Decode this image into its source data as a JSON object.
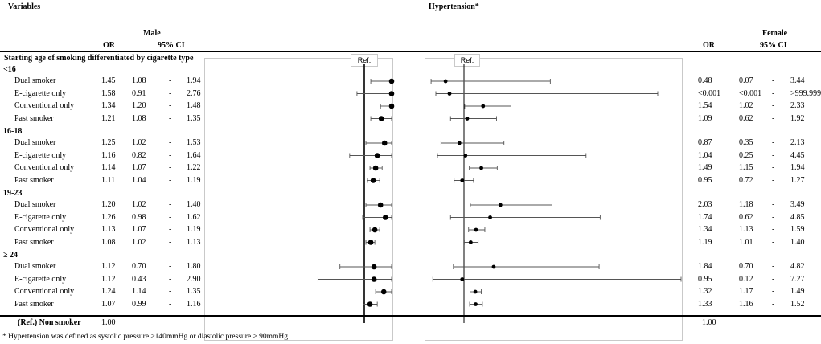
{
  "header": {
    "variables": "Variables",
    "hypertension": "Hypertension*",
    "male": "Male",
    "female": "Female",
    "or": "OR",
    "ci": "95% CI",
    "section_title": "Starting age of smoking differentiated by cigarette type"
  },
  "ref_label": "Ref.",
  "groups": [
    "<16",
    "16-18",
    "19-23",
    "≥ 24"
  ],
  "dash": "-",
  "footer": {
    "ref_row_label": "(Ref.) Non smoker",
    "ref_male_or": "1.00",
    "ref_female_or": "1.00",
    "note": "* Hypertension was defined as systolic pressure ≥140mmHg or diastolic pressure ≥ 90mmHg"
  },
  "chart_data": {
    "type": "forest",
    "reference_value": 1.0,
    "male_xlim": [
      0.4,
      3.0
    ],
    "female_xlim": [
      0.0,
      5.0
    ],
    "rows": [
      {
        "group": "<16",
        "label": "Dual smoker",
        "m_or": "1.45",
        "m_lo": "1.08",
        "m_hi": "1.94",
        "f_or": "0.48",
        "f_lo": "0.07",
        "f_hi": "3.44"
      },
      {
        "group": "<16",
        "label": "E-cigarette only",
        "m_or": "1.58",
        "m_lo": "0.91",
        "m_hi": "2.76",
        "f_or": "<0.001",
        "f_lo": "<0.001",
        "f_hi": ">999.999"
      },
      {
        "group": "<16",
        "label": "Conventional only",
        "m_or": "1.34",
        "m_lo": "1.20",
        "m_hi": "1.48",
        "f_or": "1.54",
        "f_lo": "1.02",
        "f_hi": "2.33"
      },
      {
        "group": "<16",
        "label": "Past smoker",
        "m_or": "1.21",
        "m_lo": "1.08",
        "m_hi": "1.35",
        "f_or": "1.09",
        "f_lo": "0.62",
        "f_hi": "1.92"
      },
      {
        "group": "16-18",
        "label": "Dual smoker",
        "m_or": "1.25",
        "m_lo": "1.02",
        "m_hi": "1.53",
        "f_or": "0.87",
        "f_lo": "0.35",
        "f_hi": "2.13"
      },
      {
        "group": "16-18",
        "label": "E-cigarette only",
        "m_or": "1.16",
        "m_lo": "0.82",
        "m_hi": "1.64",
        "f_or": "1.04",
        "f_lo": "0.25",
        "f_hi": "4.45"
      },
      {
        "group": "16-18",
        "label": "Conventional only",
        "m_or": "1.14",
        "m_lo": "1.07",
        "m_hi": "1.22",
        "f_or": "1.49",
        "f_lo": "1.15",
        "f_hi": "1.94"
      },
      {
        "group": "16-18",
        "label": "Past smoker",
        "m_or": "1.11",
        "m_lo": "1.04",
        "m_hi": "1.19",
        "f_or": "0.95",
        "f_lo": "0.72",
        "f_hi": "1.27"
      },
      {
        "group": "19-23",
        "label": "Dual smoker",
        "m_or": "1.20",
        "m_lo": "1.02",
        "m_hi": "1.40",
        "f_or": "2.03",
        "f_lo": "1.18",
        "f_hi": "3.49"
      },
      {
        "group": "19-23",
        "label": "E-cigarette only",
        "m_or": "1.26",
        "m_lo": "0.98",
        "m_hi": "1.62",
        "f_or": "1.74",
        "f_lo": "0.62",
        "f_hi": "4.85"
      },
      {
        "group": "19-23",
        "label": "Conventional only",
        "m_or": "1.13",
        "m_lo": "1.07",
        "m_hi": "1.19",
        "f_or": "1.34",
        "f_lo": "1.13",
        "f_hi": "1.59"
      },
      {
        "group": "19-23",
        "label": "Past smoker",
        "m_or": "1.08",
        "m_lo": "1.02",
        "m_hi": "1.13",
        "f_or": "1.19",
        "f_lo": "1.01",
        "f_hi": "1.40"
      },
      {
        "group": "≥ 24",
        "label": "Dual smoker",
        "m_or": "1.12",
        "m_lo": "0.70",
        "m_hi": "1.80",
        "f_or": "1.84",
        "f_lo": "0.70",
        "f_hi": "4.82"
      },
      {
        "group": "≥ 24",
        "label": "E-cigarette only",
        "m_or": "1.12",
        "m_lo": "0.43",
        "m_hi": "2.90",
        "f_or": "0.95",
        "f_lo": "0.12",
        "f_hi": "7.27"
      },
      {
        "group": "≥ 24",
        "label": "Conventional only",
        "m_or": "1.24",
        "m_lo": "1.14",
        "m_hi": "1.35",
        "f_or": "1.32",
        "f_lo": "1.17",
        "f_hi": "1.49"
      },
      {
        "group": "≥ 24",
        "label": "Past smoker",
        "m_or": "1.07",
        "m_lo": "0.99",
        "m_hi": "1.16",
        "f_or": "1.33",
        "f_lo": "1.16",
        "f_hi": "1.52"
      }
    ]
  }
}
